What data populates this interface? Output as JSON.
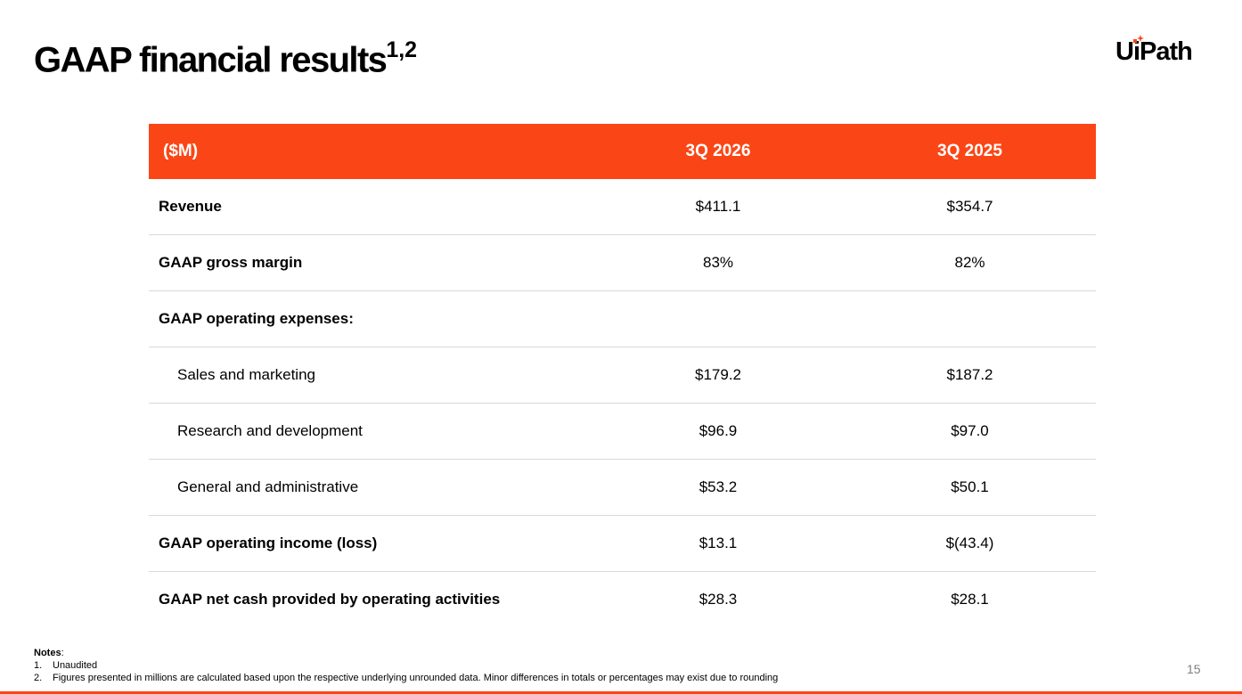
{
  "slide": {
    "title": "GAAP financial results",
    "title_superscript": "1,2",
    "page_number": "15"
  },
  "logo": {
    "text_before": "U",
    "text_i": "i",
    "text_after": "Path",
    "accent_color": "#fa4616"
  },
  "table": {
    "headers": [
      "($M)",
      "3Q 2026",
      "3Q 2025"
    ],
    "header_color": "#fa4616",
    "rows": [
      {
        "label": "Revenue",
        "q3_2026": "$411.1",
        "q3_2025": "$354.7"
      },
      {
        "label": "GAAP gross margin",
        "q3_2026": "83%",
        "q3_2025": "82%"
      },
      {
        "label": "GAAP operating expenses:",
        "q3_2026": "",
        "q3_2025": ""
      },
      {
        "label": "Sales and marketing",
        "q3_2026": "$179.2",
        "q3_2025": "$187.2"
      },
      {
        "label": "Research and development",
        "q3_2026": "$96.9",
        "q3_2025": "$97.0"
      },
      {
        "label": "General and administrative",
        "q3_2026": "$53.2",
        "q3_2025": "$50.1"
      },
      {
        "label": "GAAP operating income (loss)",
        "q3_2026": "$13.1",
        "q3_2025": "$(43.4)"
      },
      {
        "label": "GAAP net cash provided by operating activities",
        "q3_2026": "$28.3",
        "q3_2025": "$28.1"
      }
    ]
  },
  "notes": {
    "heading": "Notes",
    "items": [
      {
        "num": "1.",
        "text": "Unaudited"
      },
      {
        "num": "2.",
        "text": "Figures presented in millions are calculated based upon the respective underlying unrounded data. Minor differences in totals or percentages may exist due to rounding"
      }
    ]
  }
}
